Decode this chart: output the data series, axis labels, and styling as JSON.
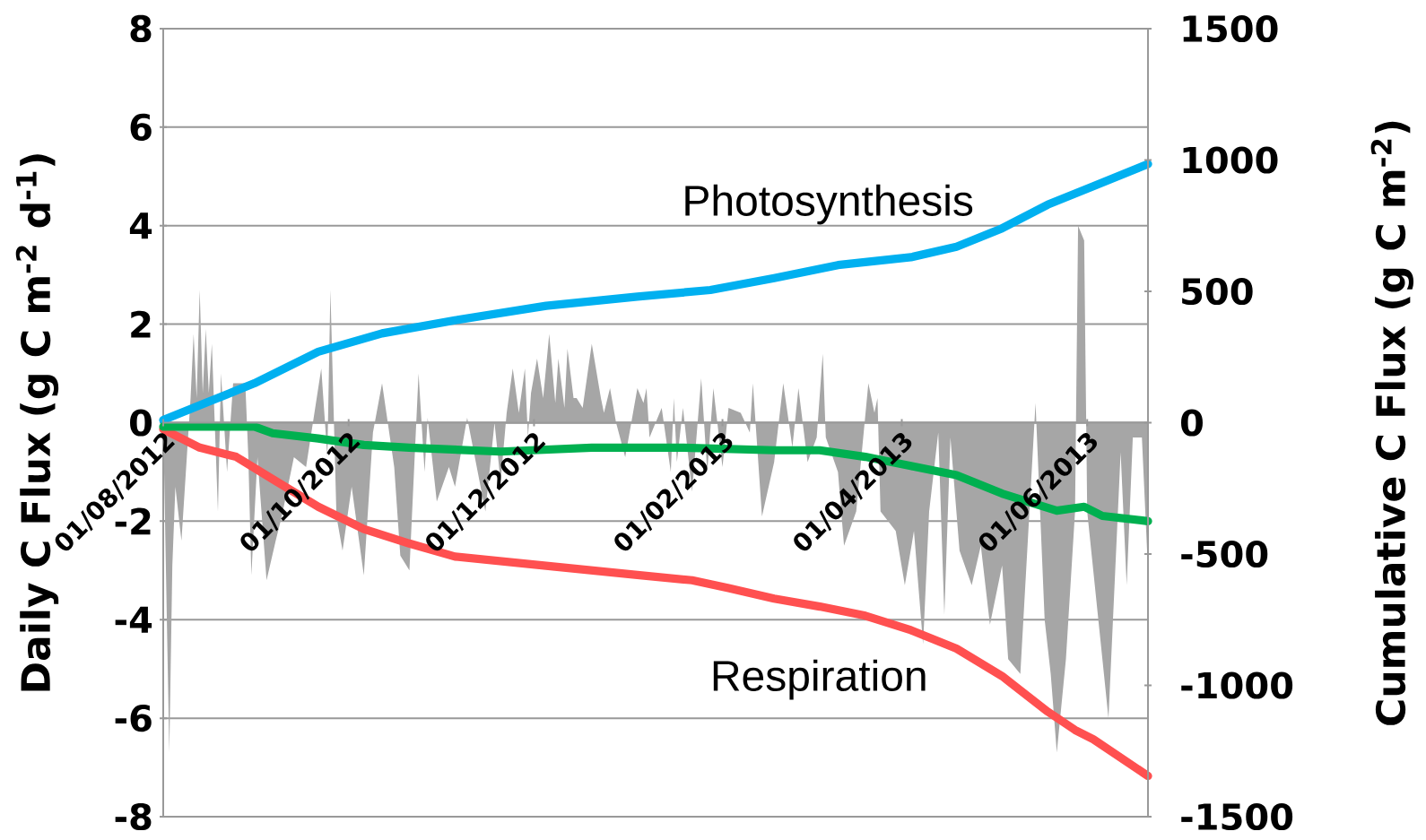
{
  "chart_data": {
    "type": "line",
    "ylabel": "Daily C Flux (g C m$^{-2}$ d$^{-1}$)",
    "y2label": "Cumulative C Flux (g C m$^{-2}$)",
    "xlim": [
      "2012-08-01",
      "2013-06-21"
    ],
    "xticks": [
      {
        "value": "2012-08-01",
        "label": "01/08/2012"
      },
      {
        "value": "2012-10-01",
        "label": "01/10/2012"
      },
      {
        "value": "2012-12-01",
        "label": "01/12/2012"
      },
      {
        "value": "2013-02-01",
        "label": "01/02/2013"
      },
      {
        "value": "2013-04-01",
        "label": "01/04/2013"
      },
      {
        "value": "2013-06-01",
        "label": "01/06/2013"
      }
    ],
    "ylim": [
      -8,
      8
    ],
    "yticks": [
      -8,
      -6,
      -4,
      -2,
      0,
      2,
      4,
      6,
      8
    ],
    "y2lim": [
      -1500,
      1500
    ],
    "y2ticks": [
      -1500,
      -1000,
      -500,
      0,
      500,
      1000,
      1500
    ],
    "grid": "y",
    "marker": "none",
    "series": [
      {
        "type": "area",
        "color": "#a6a6a6",
        "x": [
          "2012-08-01",
          "2012-08-03",
          "2012-08-04",
          "2012-08-05",
          "2012-08-07",
          "2012-08-10",
          "2012-08-11",
          "2012-08-12",
          "2012-08-13",
          "2012-08-14",
          "2012-08-15",
          "2012-08-16",
          "2012-08-17",
          "2012-08-19",
          "2012-08-20",
          "2012-08-22",
          "2012-08-24",
          "2012-08-28",
          "2012-08-29",
          "2012-08-30",
          "2012-09-01",
          "2012-09-04",
          "2012-09-07",
          "2012-09-09",
          "2012-09-13",
          "2012-09-17",
          "2012-09-22",
          "2012-09-24",
          "2012-09-25",
          "2012-09-27",
          "2012-09-29",
          "2012-10-02",
          "2012-10-06",
          "2012-10-09",
          "2012-10-12",
          "2012-10-16",
          "2012-10-18",
          "2012-10-21",
          "2012-10-24",
          "2012-10-26",
          "2012-10-27",
          "2012-10-30",
          "2012-11-03",
          "2012-11-05",
          "2012-11-09",
          "2012-11-15",
          "2012-11-18",
          "2012-11-20",
          "2012-11-22",
          "2012-11-24",
          "2012-11-26",
          "2012-11-28",
          "2012-11-29",
          "2012-11-30",
          "2012-12-02",
          "2012-12-04",
          "2012-12-06",
          "2012-12-08",
          "2012-12-09",
          "2012-12-11",
          "2012-12-12",
          "2012-12-14",
          "2012-12-15",
          "2012-12-17",
          "2012-12-20",
          "2012-12-23",
          "2012-12-24",
          "2012-12-26",
          "2012-12-28",
          "2012-12-31",
          "2013-01-04",
          "2013-01-06",
          "2013-01-07",
          "2013-01-08",
          "2013-01-12",
          "2013-01-15",
          "2013-01-16",
          "2013-01-17",
          "2013-01-19",
          "2013-01-22",
          "2013-01-25",
          "2013-01-27",
          "2013-01-29",
          "2013-02-01",
          "2013-02-03",
          "2013-02-07",
          "2013-02-10",
          "2013-02-11",
          "2013-02-14",
          "2013-02-18",
          "2013-02-21",
          "2013-02-24",
          "2013-02-26",
          "2013-03-01",
          "2013-03-04",
          "2013-03-06",
          "2013-03-07",
          "2013-03-11",
          "2013-03-13",
          "2013-03-17",
          "2013-03-21",
          "2013-03-23",
          "2013-03-24",
          "2013-03-25",
          "2013-03-30",
          "2013-04-02",
          "2013-04-05",
          "2013-04-08",
          "2013-04-10",
          "2013-04-13",
          "2013-04-15",
          "2013-04-17",
          "2013-04-20",
          "2013-04-24",
          "2013-04-27",
          "2013-04-30",
          "2013-05-04",
          "2013-05-06",
          "2013-05-10",
          "2013-05-13",
          "2013-05-15",
          "2013-05-18",
          "2013-05-20",
          "2013-05-22",
          "2013-05-25",
          "2013-05-28",
          "2013-05-29",
          "2013-05-31",
          "2013-06-01",
          "2013-06-05",
          "2013-06-08",
          "2013-06-12",
          "2013-06-14",
          "2013-06-16",
          "2013-06-19",
          "2013-06-21"
        ],
        "values": [
          0,
          -6.7,
          -2.9,
          -1.3,
          -2.4,
          0.5,
          1.8,
          0.5,
          2.7,
          0.6,
          1.9,
          0.6,
          1.6,
          -1.8,
          1.0,
          -1.0,
          0.8,
          0.8,
          -0.7,
          -3.1,
          -0.7,
          -3.2,
          -2.4,
          -1.9,
          -0.7,
          -0.9,
          1.1,
          -0.7,
          2.7,
          -1.9,
          -2.6,
          -1.3,
          -3.1,
          -0.2,
          0.8,
          -0.9,
          -2.7,
          -3.0,
          1.0,
          -1.0,
          0.1,
          -1.6,
          -0.9,
          -1.3,
          0.1,
          -1.8,
          0,
          -1.2,
          0.2,
          1.1,
          0.2,
          1.1,
          -0.3,
          0.6,
          1.3,
          0.5,
          1.8,
          0.4,
          1.3,
          0.3,
          1.5,
          0.5,
          0.5,
          0.3,
          1.6,
          0.5,
          0.2,
          0.7,
          0,
          -0.7,
          0.7,
          0.4,
          0.7,
          -0.3,
          0.3,
          -1.0,
          0.5,
          -0.8,
          0.3,
          -1.4,
          0.9,
          -1.0,
          0.7,
          -0.9,
          0.3,
          0.2,
          -0.2,
          0.8,
          -1.9,
          -0.8,
          0.8,
          -0.5,
          0.7,
          -0.8,
          -0.3,
          1.4,
          -0.3,
          -1.0,
          -2.5,
          -1.8,
          0.8,
          0.2,
          0.5,
          -1.8,
          -2.2,
          -3.3,
          -2.2,
          -4.5,
          -1.8,
          -0.2,
          -3.9,
          -0.3,
          -2.6,
          -3.3,
          -2.5,
          -4.1,
          -2.9,
          -4.8,
          -5.1,
          -1.8,
          0.4,
          -4.0,
          -5.1,
          -6.7,
          -4.8,
          -1.8,
          4.0,
          3.7,
          -1.8,
          -4.2,
          -6.0,
          -0.6,
          -3.3,
          -0.3,
          -0.3,
          -3.0
        ]
      },
      {
        "name": "Photosynthesis",
        "color": "#00b0f0",
        "axis": "y2",
        "x": [
          "2012-08-01",
          "2012-08-16",
          "2012-08-31",
          "2012-09-21",
          "2012-10-12",
          "2012-11-05",
          "2012-12-05",
          "2013-01-04",
          "2013-01-28",
          "2013-02-18",
          "2013-03-11",
          "2013-04-04",
          "2013-04-19",
          "2013-05-04",
          "2013-05-19",
          "2013-06-03",
          "2013-06-21"
        ],
        "values": [
          10,
          80,
          150,
          270,
          340,
          390,
          445,
          480,
          505,
          550,
          600,
          630,
          670,
          740,
          830,
          900,
          985
        ]
      },
      {
        "name": "Respiration",
        "color": "#ff5050",
        "axis": "y2",
        "x": [
          "2012-08-01",
          "2012-08-13",
          "2012-08-25",
          "2012-09-06",
          "2012-09-21",
          "2012-10-06",
          "2012-10-21",
          "2012-11-05",
          "2012-12-05",
          "2013-01-04",
          "2013-01-22",
          "2013-02-03",
          "2013-02-18",
          "2013-03-05",
          "2013-03-20",
          "2013-04-04",
          "2013-04-19",
          "2013-05-04",
          "2013-05-19",
          "2013-05-28",
          "2013-06-03",
          "2013-06-21"
        ],
        "values": [
          -25,
          -95,
          -130,
          -215,
          -320,
          -405,
          -460,
          -510,
          -545,
          -580,
          -600,
          -630,
          -670,
          -700,
          -735,
          -790,
          -860,
          -965,
          -1100,
          -1170,
          -1205,
          -1345
        ]
      },
      {
        "color": "#00b050",
        "axis": "y2",
        "x": [
          "2012-08-01",
          "2012-08-16",
          "2012-08-31",
          "2012-09-06",
          "2012-09-21",
          "2012-10-06",
          "2012-10-21",
          "2012-11-20",
          "2012-12-20",
          "2013-01-19",
          "2013-02-18",
          "2013-03-05",
          "2013-03-20",
          "2013-04-04",
          "2013-04-19",
          "2013-05-04",
          "2013-05-22",
          "2013-05-31",
          "2013-06-06",
          "2013-06-21"
        ],
        "values": [
          -15,
          -15,
          -15,
          -40,
          -60,
          -85,
          -95,
          -110,
          -95,
          -95,
          -105,
          -105,
          -130,
          -165,
          -200,
          -270,
          -335,
          -320,
          -355,
          -375
        ]
      }
    ]
  }
}
